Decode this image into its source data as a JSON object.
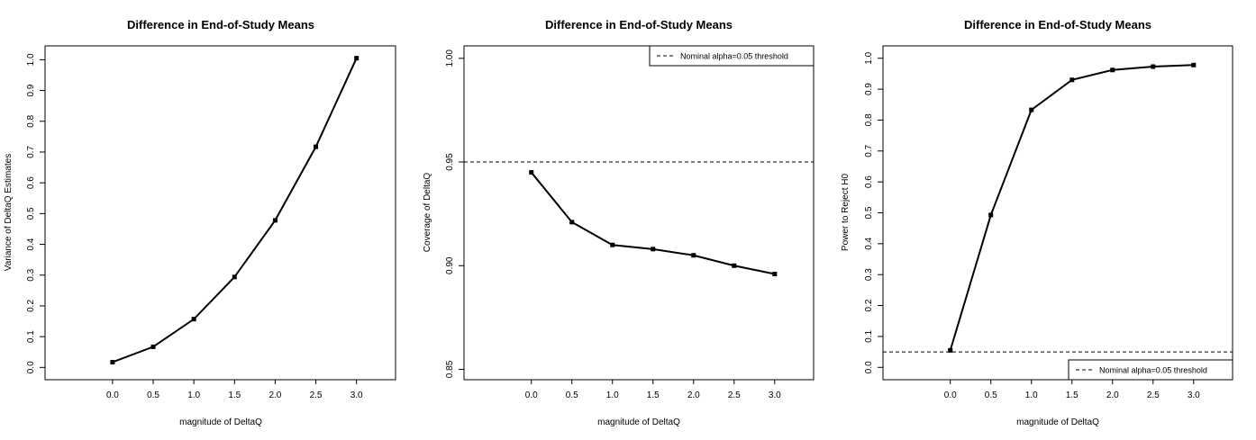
{
  "chart_data": [
    {
      "type": "line",
      "title": "Difference in End-of-Study Means",
      "xlabel": "magnitude of DeltaQ",
      "ylabel": "Variance of DeltaQ Estimates",
      "x_ticks": [
        "0.0",
        "0.5",
        "1.0",
        "1.5",
        "2.0",
        "2.5",
        "3.0"
      ],
      "y_ticks": [
        "0.0",
        "0.1",
        "0.2",
        "0.3",
        "0.4",
        "0.5",
        "0.6",
        "0.7",
        "0.8",
        "0.9",
        "1.0"
      ],
      "xlim": [
        -0.83,
        3.48
      ],
      "ylim": [
        -0.04,
        1.045
      ],
      "x": [
        0.0,
        0.5,
        1.0,
        1.5,
        2.0,
        2.5,
        3.0
      ],
      "y": [
        0.017,
        0.067,
        0.157,
        0.294,
        0.478,
        0.717,
        1.005
      ],
      "grid": false
    },
    {
      "type": "line",
      "title": "Difference in End-of-Study Means",
      "xlabel": "magnitude of DeltaQ",
      "ylabel": "Coverage of DeltaQ",
      "x_ticks": [
        "0.0",
        "0.5",
        "1.0",
        "1.5",
        "2.0",
        "2.5",
        "3.0"
      ],
      "y_ticks": [
        "0.85",
        "0.90",
        "0.95",
        "1.00"
      ],
      "xlim": [
        -0.83,
        3.48
      ],
      "ylim": [
        0.845,
        1.006
      ],
      "x": [
        0.0,
        0.5,
        1.0,
        1.5,
        2.0,
        2.5,
        3.0
      ],
      "y": [
        0.945,
        0.921,
        0.91,
        0.908,
        0.905,
        0.9,
        0.896
      ],
      "reference_line": {
        "y": 0.95,
        "style": "dashed"
      },
      "legend": {
        "label": "Nominal alpha=0.05 threshold",
        "position": "top-right"
      },
      "grid": false
    },
    {
      "type": "line",
      "title": "Difference in End-of-Study Means",
      "xlabel": "magnitude of DeltaQ",
      "ylabel": "Power to Reject H0",
      "x_ticks": [
        "0.0",
        "0.5",
        "1.0",
        "1.5",
        "2.0",
        "2.5",
        "3.0"
      ],
      "y_ticks": [
        "0.0",
        "0.1",
        "0.2",
        "0.3",
        "0.4",
        "0.5",
        "0.6",
        "0.7",
        "0.8",
        "0.9",
        "1.0"
      ],
      "xlim": [
        -0.83,
        3.48
      ],
      "ylim": [
        -0.04,
        1.04
      ],
      "x": [
        0.0,
        0.5,
        1.0,
        1.5,
        2.0,
        2.5,
        3.0
      ],
      "y": [
        0.055,
        0.493,
        0.833,
        0.93,
        0.962,
        0.973,
        0.978
      ],
      "reference_line": {
        "y": 0.05,
        "style": "dashed"
      },
      "legend": {
        "label": "Nominal alpha=0.05 threshold",
        "position": "bottom-right"
      },
      "grid": false
    }
  ]
}
